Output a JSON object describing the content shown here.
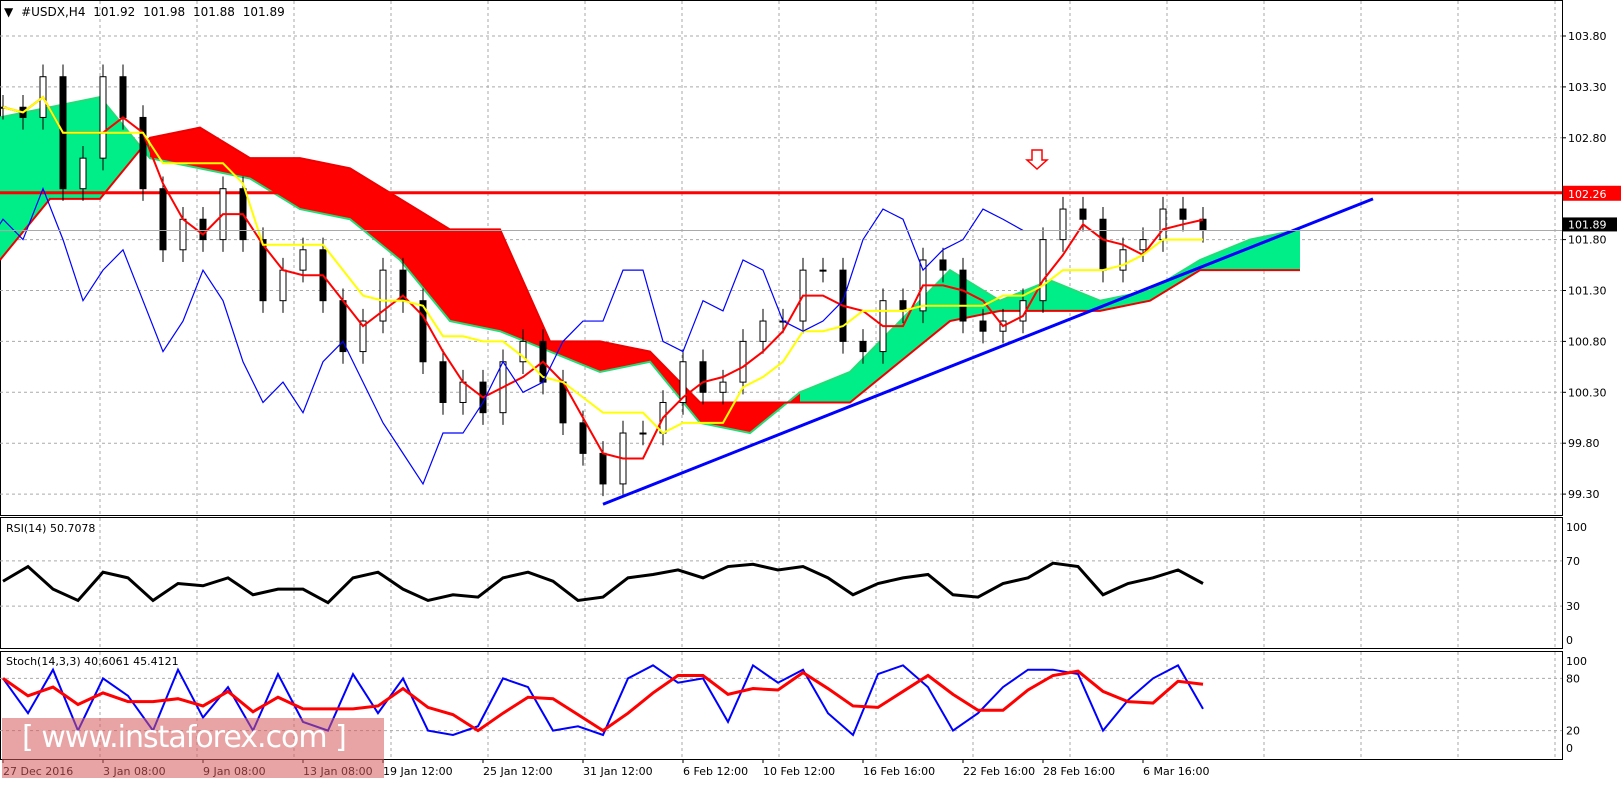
{
  "header": {
    "symbol": "#USDX,H4",
    "open": "101.92",
    "high": "101.98",
    "low": "101.88",
    "close": "101.89"
  },
  "rsi_label": "RSI(14) 50.7078",
  "stoch_label": "Stoch(14,3,3) 40.6061 45.4121",
  "watermark": "[ www.instaforex.com ]",
  "colors": {
    "tenkan": "#ff0000",
    "kijun": "#ffff00",
    "chikou": "#0000ff",
    "cloud_bull": "#00ee88",
    "cloud_bear": "#ff0000",
    "resistance": "#ff0000",
    "trendline": "#0000ff",
    "rsi": "#000000",
    "stoch_main": "#0000ff",
    "stoch_signal": "#ff0000"
  },
  "chart_data": [
    {
      "type": "candlestick",
      "title": "#USDX,H4",
      "yticks": [
        "103.80",
        "103.30",
        "102.80",
        "101.80",
        "101.30",
        "100.80",
        "100.30",
        "99.80",
        "99.30"
      ],
      "ylim": [
        99.1,
        104.0
      ],
      "xticks": [
        {
          "i": 0,
          "label": "27 Dec 2016"
        },
        {
          "i": 5,
          "label": "3 Jan 08:00"
        },
        {
          "i": 10,
          "label": "9 Jan 08:00"
        },
        {
          "i": 15,
          "label": "13 Jan 08:00"
        },
        {
          "i": 19,
          "label": "19 Jan 12:00"
        },
        {
          "i": 24,
          "label": "25 Jan 12:00"
        },
        {
          "i": 29,
          "label": "31 Jan 12:00"
        },
        {
          "i": 34,
          "label": "6 Feb 12:00"
        },
        {
          "i": 38,
          "label": "10 Feb 12:00"
        },
        {
          "i": 43,
          "label": "16 Feb 16:00"
        },
        {
          "i": 48,
          "label": "22 Feb 16:00"
        },
        {
          "i": 52,
          "label": "28 Feb 16:00"
        },
        {
          "i": 57,
          "label": "6 Mar 16:00"
        }
      ],
      "close": [
        103.1,
        103.0,
        103.4,
        102.3,
        102.6,
        103.4,
        103.0,
        102.3,
        101.7,
        102.0,
        101.8,
        102.3,
        101.8,
        101.2,
        101.5,
        101.7,
        101.2,
        100.7,
        101.0,
        101.5,
        101.2,
        100.6,
        100.2,
        100.4,
        100.1,
        100.6,
        100.8,
        100.4,
        100.0,
        99.7,
        99.4,
        99.9,
        99.9,
        100.2,
        100.6,
        100.3,
        100.4,
        100.8,
        101.0,
        101.0,
        101.5,
        101.5,
        100.8,
        100.7,
        101.2,
        101.1,
        101.6,
        101.5,
        101.0,
        100.9,
        101.0,
        101.2,
        101.8,
        102.1,
        102.0,
        101.5,
        101.7,
        101.8,
        102.1,
        102.0,
        101.89
      ],
      "cloud_span_a": [
        103.0,
        103.1,
        103.2,
        102.6,
        102.5,
        102.4,
        102.1,
        102.0,
        101.6,
        101.0,
        100.9,
        100.7,
        100.5,
        100.6,
        100.0,
        99.9,
        100.3,
        100.5,
        101.0,
        101.5,
        101.2,
        101.4,
        101.2,
        101.3,
        101.6,
        101.8,
        101.9
      ],
      "cloud_span_b": [
        101.6,
        102.2,
        102.2,
        102.8,
        102.9,
        102.6,
        102.6,
        102.5,
        102.2,
        101.9,
        101.9,
        100.8,
        100.8,
        100.7,
        100.2,
        100.2,
        100.2,
        100.2,
        100.6,
        101.0,
        101.1,
        101.1,
        101.1,
        101.2,
        101.5,
        101.5,
        101.5
      ],
      "horizontal_line": {
        "value": 102.26,
        "label": "102.26"
      },
      "current_price": {
        "value": 101.89,
        "label": "101.89"
      },
      "trendline": {
        "from": {
          "i": 30,
          "value": 99.2
        },
        "to": {
          "i": 68.5,
          "value": 102.2
        }
      },
      "arrow": {
        "i": 52,
        "direction": "down"
      }
    },
    {
      "type": "line",
      "title": "RSI(14) 50.7078",
      "ylim": [
        0,
        100
      ],
      "yticks": [
        "100",
        "70",
        "30",
        "0"
      ],
      "values": [
        52,
        65,
        45,
        35,
        60,
        55,
        35,
        50,
        48,
        55,
        40,
        45,
        45,
        33,
        55,
        60,
        45,
        35,
        40,
        38,
        55,
        60,
        52,
        35,
        38,
        55,
        58,
        62,
        55,
        65,
        67,
        62,
        65,
        55,
        40,
        50,
        55,
        58,
        40,
        38,
        50,
        55,
        68,
        65,
        40,
        50,
        55,
        62,
        50
      ]
    },
    {
      "type": "line",
      "title": "Stoch(14,3,3) 40.6061 45.4121",
      "ylim": [
        0,
        100
      ],
      "yticks": [
        "100",
        "80",
        "20",
        "0"
      ],
      "k_values": [
        80,
        40,
        90,
        20,
        80,
        60,
        20,
        90,
        35,
        70,
        20,
        85,
        30,
        20,
        85,
        40,
        80,
        20,
        15,
        25,
        80,
        70,
        20,
        25,
        15,
        80,
        95,
        75,
        80,
        30,
        95,
        75,
        90,
        40,
        15,
        85,
        95,
        70,
        20,
        40,
        70,
        90,
        90,
        85,
        20,
        55,
        80,
        95,
        45
      ]
    }
  ]
}
